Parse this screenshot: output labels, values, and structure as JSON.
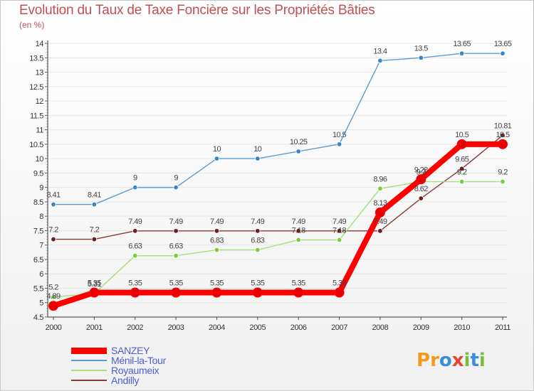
{
  "header": {
    "title": "Evolution du Taux de Taxe Foncière sur les Propriétés Bâties",
    "unit": "(en %)"
  },
  "logo": {
    "letters": [
      "P",
      "r",
      "o",
      "x",
      "i",
      "t",
      "i"
    ],
    "colors": [
      "#f29a1f",
      "#f29a1f",
      "#3a8fd6",
      "#e8442d",
      "#7bbd3a",
      "#3a8fd6",
      "#7bbd3a"
    ]
  },
  "chart_data": {
    "type": "line",
    "title": "Evolution du Taux de Taxe Foncière sur les Propriétés Bâties",
    "ylabel": "(en %)",
    "xlabel": "",
    "x": [
      2000,
      2001,
      2002,
      2003,
      2004,
      2005,
      2006,
      2007,
      2008,
      2009,
      2010,
      2011
    ],
    "x_labels": [
      "2000",
      "2001",
      "2002",
      "2003",
      "2004",
      "2005",
      "2006",
      "2007",
      "2008",
      "2009",
      "2010",
      "2011"
    ],
    "ylim": [
      4.5,
      14
    ],
    "y_ticks": [
      4.5,
      5,
      5.5,
      6,
      6.5,
      7,
      7.5,
      8,
      8.5,
      9,
      9.5,
      10,
      10.5,
      11,
      11.5,
      12,
      12.5,
      13,
      13.5,
      14
    ],
    "y_tick_labels": [
      "4.5",
      "5",
      "5.5",
      "6",
      "6.5",
      "7",
      "7.5",
      "8",
      "8.5",
      "9",
      "9.5",
      "10",
      "10.5",
      "11",
      "11.5",
      "12",
      "12.5",
      "13",
      "13.5",
      "14"
    ],
    "legend_position": "bottom-left",
    "series": [
      {
        "name": "Ménil-la-Tour",
        "color": "#5b9bd5",
        "point_color": "#3a85c7",
        "values": [
          8.41,
          8.41,
          9,
          9,
          10,
          10,
          10.25,
          10.5,
          13.4,
          13.5,
          13.65,
          13.65
        ],
        "labels": [
          "8.41",
          "8.41",
          "9",
          "9",
          "10",
          "10",
          "10.25",
          "10.5",
          "13.4",
          "13.5",
          "13.65",
          "13.65"
        ]
      },
      {
        "name": "Andilly",
        "color": "#8b3a3a",
        "point_color": "#6b1e1e",
        "values": [
          7.2,
          7.2,
          7.49,
          7.49,
          7.49,
          7.49,
          7.49,
          7.49,
          7.49,
          8.62,
          9.65,
          10.81
        ],
        "labels": [
          "7.2",
          "7.2",
          "7.49",
          "7.49",
          "7.49",
          "7.49",
          "7.49",
          "7.49",
          "7.49",
          "8.62",
          "9.65",
          "10.81"
        ]
      },
      {
        "name": "Royaumeix",
        "color": "#a6e07a",
        "point_color": "#7ccc3e",
        "values": [
          5.2,
          5.31,
          6.63,
          6.63,
          6.83,
          6.83,
          7.18,
          7.18,
          8.96,
          9.2,
          9.2,
          9.2
        ],
        "labels": [
          "5.2",
          "5.31",
          "6.63",
          "6.63",
          "6.83",
          "6.83",
          "7.18",
          "7.18",
          "8.96",
          "9.2",
          "9.2",
          "9.2"
        ]
      },
      {
        "name": "SANZEY",
        "color": "#ff0000",
        "point_color": "#e80000",
        "values": [
          4.89,
          5.35,
          5.35,
          5.35,
          5.35,
          5.35,
          5.35,
          5.35,
          8.13,
          9.28,
          10.5,
          10.5
        ],
        "labels": [
          "4.89",
          "5.35",
          "5.35",
          "5.35",
          "5.35",
          "5.35",
          "5.35",
          "5.35",
          "8.13",
          "9.28",
          "10.5",
          "10.5"
        ]
      }
    ],
    "legend": [
      {
        "name": "SANZEY",
        "color": "#ff0000",
        "thickness": 9
      },
      {
        "name": "Ménil-la-Tour",
        "color": "#5b9bd5",
        "thickness": 2
      },
      {
        "name": "Royaumeix",
        "color": "#a6e07a",
        "thickness": 2
      },
      {
        "name": "Andilly",
        "color": "#8b3a3a",
        "thickness": 2
      }
    ]
  }
}
